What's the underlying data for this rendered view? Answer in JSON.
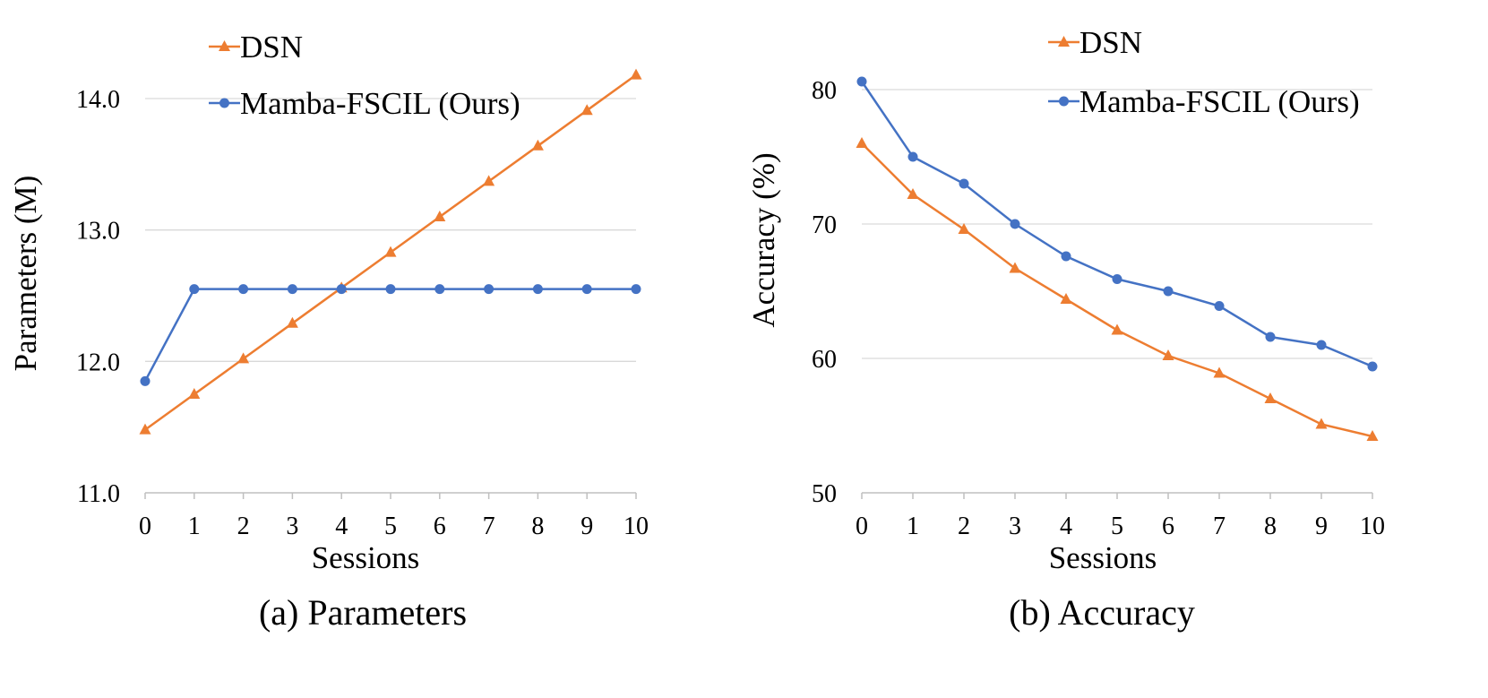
{
  "charts": [
    {
      "type": "line",
      "caption": "(a) Parameters",
      "xlabel": "Sessions",
      "ylabel": "Parameters (M)",
      "x": [
        0,
        1,
        2,
        3,
        4,
        5,
        6,
        7,
        8,
        9,
        10
      ],
      "ylim": [
        11.0,
        14.0
      ],
      "yticks": [
        11.0,
        12.0,
        13.0,
        14.0
      ],
      "ytick_labels": [
        "11.0",
        "12.0",
        "13.0",
        "14.0"
      ],
      "series": [
        {
          "name": "DSN",
          "color": "#ED7D31",
          "marker": "triangle",
          "values": [
            11.48,
            11.75,
            12.02,
            12.29,
            12.56,
            12.83,
            13.1,
            13.37,
            13.64,
            13.91,
            14.18
          ]
        },
        {
          "name": "Mamba-FSCIL (Ours)",
          "color": "#4472C4",
          "marker": "circle",
          "values": [
            11.85,
            12.55,
            12.55,
            12.55,
            12.55,
            12.55,
            12.55,
            12.55,
            12.55,
            12.55,
            12.55
          ]
        }
      ]
    },
    {
      "type": "line",
      "caption": "(b) Accuracy",
      "xlabel": "Sessions",
      "ylabel": "Accuracy (%)",
      "x": [
        0,
        1,
        2,
        3,
        4,
        5,
        6,
        7,
        8,
        9,
        10
      ],
      "ylim": [
        50,
        80
      ],
      "yticks": [
        50,
        60,
        70,
        80
      ],
      "ytick_labels": [
        "50",
        "60",
        "70",
        "80"
      ],
      "series": [
        {
          "name": "DSN",
          "color": "#ED7D31",
          "marker": "triangle",
          "values": [
            76.0,
            72.2,
            69.6,
            66.7,
            64.4,
            62.1,
            60.2,
            58.9,
            57.0,
            55.1,
            54.2
          ]
        },
        {
          "name": "Mamba-FSCIL (Ours)",
          "color": "#4472C4",
          "marker": "circle",
          "values": [
            80.6,
            75.0,
            73.0,
            70.0,
            67.6,
            65.9,
            65.0,
            63.9,
            61.6,
            61.0,
            59.4
          ]
        }
      ]
    }
  ]
}
